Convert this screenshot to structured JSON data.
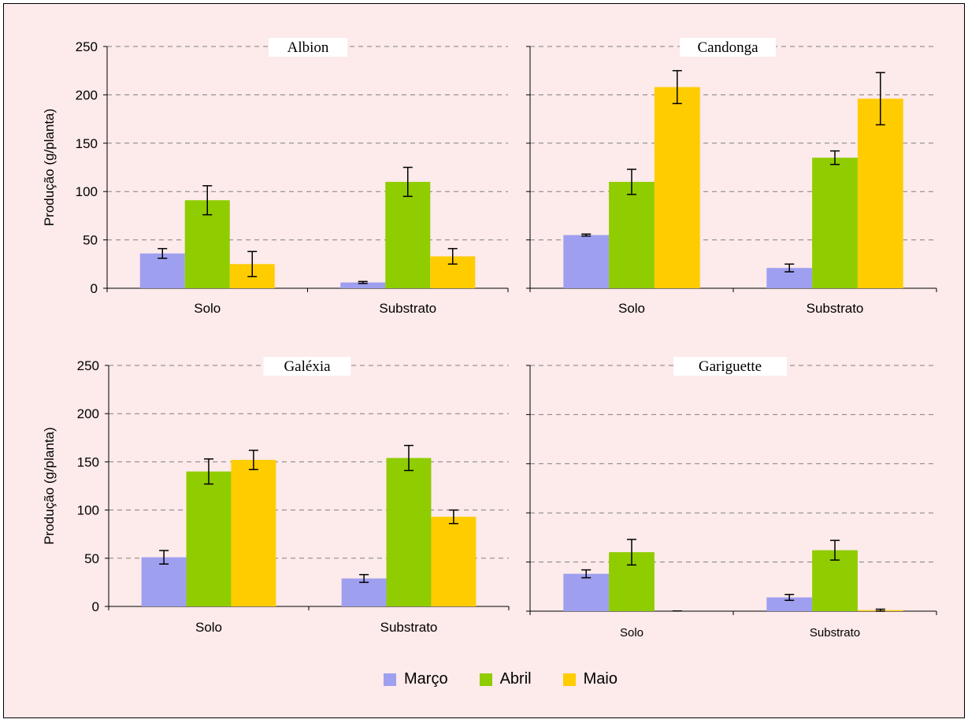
{
  "chart_data": [
    {
      "type": "bar",
      "title": "Albion",
      "ylabel": "Produção (g/planta)",
      "categories": [
        "Solo",
        "Substrato"
      ],
      "ylim": [
        0,
        250
      ],
      "yticks": [
        "0",
        "50",
        "100",
        "150",
        "200",
        "250"
      ],
      "series": [
        {
          "name": "Março",
          "values": [
            36,
            6
          ],
          "errors": [
            5,
            1
          ]
        },
        {
          "name": "Abril",
          "values": [
            91,
            110
          ],
          "errors": [
            15,
            15
          ]
        },
        {
          "name": "Maio",
          "values": [
            25,
            33
          ],
          "errors": [
            13,
            8
          ]
        }
      ]
    },
    {
      "type": "bar",
      "title": "Candonga",
      "ylabel": "",
      "categories": [
        "Solo",
        "Substrato"
      ],
      "ylim": [
        0,
        250
      ],
      "yticks": [],
      "series": [
        {
          "name": "Março",
          "values": [
            55,
            21
          ],
          "errors": [
            1,
            4
          ]
        },
        {
          "name": "Abril",
          "values": [
            110,
            135
          ],
          "errors": [
            13,
            7
          ]
        },
        {
          "name": "Maio",
          "values": [
            208,
            196
          ],
          "errors": [
            17,
            27
          ]
        }
      ]
    },
    {
      "type": "bar",
      "title": "Galéxia",
      "ylabel": "Produção (g/planta)",
      "categories": [
        "Solo",
        "Substrato"
      ],
      "ylim": [
        0,
        250
      ],
      "yticks": [
        "0",
        "50",
        "100",
        "150",
        "200",
        "250"
      ],
      "series": [
        {
          "name": "Março",
          "values": [
            51,
            29
          ],
          "errors": [
            7,
            4
          ]
        },
        {
          "name": "Abril",
          "values": [
            140,
            154
          ],
          "errors": [
            13,
            13
          ]
        },
        {
          "name": "Maio",
          "values": [
            152,
            93
          ],
          "errors": [
            10,
            7
          ]
        }
      ]
    },
    {
      "type": "bar",
      "title": "Gariguette",
      "ylabel": "",
      "categories": [
        "Solo",
        "Substrato"
      ],
      "ylim": [
        0,
        250
      ],
      "yticks": [],
      "series": [
        {
          "name": "Março",
          "values": [
            38,
            14
          ],
          "errors": [
            4,
            3
          ]
        },
        {
          "name": "Abril",
          "values": [
            60,
            62
          ],
          "errors": [
            13,
            10
          ]
        },
        {
          "name": "Maio",
          "values": [
            0,
            1
          ],
          "errors": [
            0,
            1
          ]
        }
      ]
    }
  ],
  "colors": {
    "Março": "#9f9ff0",
    "Abril": "#8fcc00",
    "Maio": "#ffcc00"
  },
  "legend": {
    "placement": "bottom-center",
    "items": [
      {
        "label": "Março",
        "color": "#9f9ff0"
      },
      {
        "label": "Abril",
        "color": "#8fcc00"
      },
      {
        "label": "Maio",
        "color": "#ffcc00"
      }
    ]
  }
}
